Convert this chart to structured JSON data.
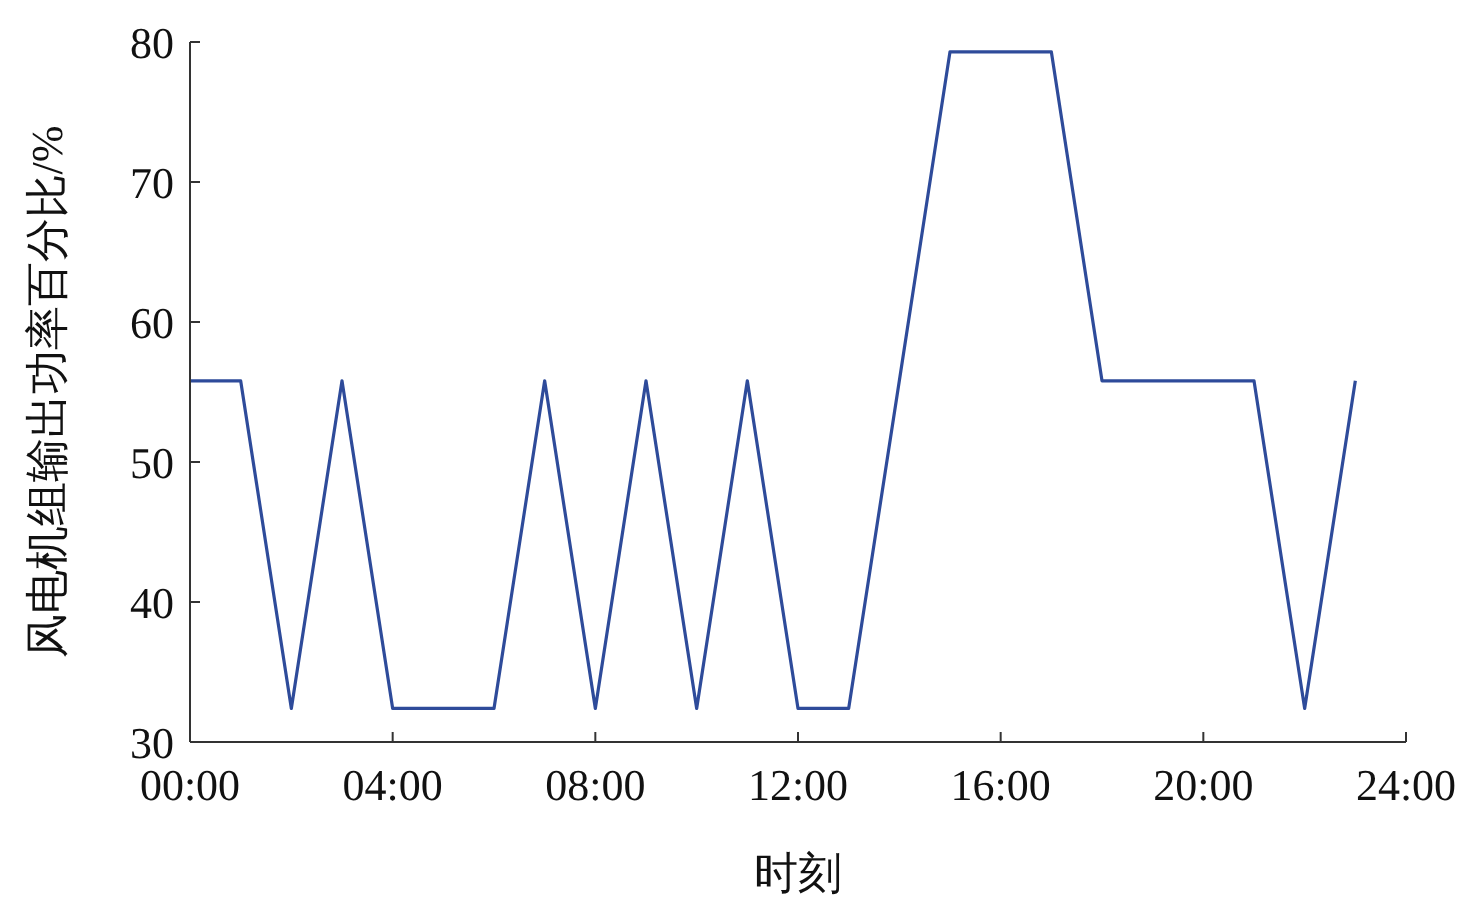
{
  "chart_data": {
    "type": "line",
    "xlabel": "时刻",
    "ylabel": "风电机组输出功率百分比/%",
    "x": [
      0,
      1,
      2,
      3,
      4,
      5,
      6,
      7,
      8,
      9,
      10,
      11,
      12,
      13,
      14,
      15,
      16,
      17,
      18,
      19,
      20,
      21,
      22,
      23
    ],
    "series": [
      {
        "color": "#2e4b9a",
        "values": [
          55.8,
          55.8,
          32.4,
          55.8,
          32.4,
          32.4,
          32.4,
          55.8,
          32.4,
          55.8,
          32.4,
          55.8,
          32.4,
          32.4,
          55.8,
          79.3,
          79.3,
          79.3,
          55.8,
          55.8,
          55.8,
          55.8,
          32.4,
          55.8
        ]
      }
    ],
    "xlim": [
      0,
      24
    ],
    "xticks": [
      {
        "value": 0,
        "label": "00:00"
      },
      {
        "value": 4,
        "label": "04:00"
      },
      {
        "value": 8,
        "label": "08:00"
      },
      {
        "value": 12,
        "label": "12:00"
      },
      {
        "value": 16,
        "label": "16:00"
      },
      {
        "value": 20,
        "label": "20:00"
      },
      {
        "value": 24,
        "label": "24:00"
      }
    ],
    "ylim": [
      30,
      80
    ],
    "yticks": [
      30,
      40,
      50,
      60,
      70,
      80
    ]
  }
}
